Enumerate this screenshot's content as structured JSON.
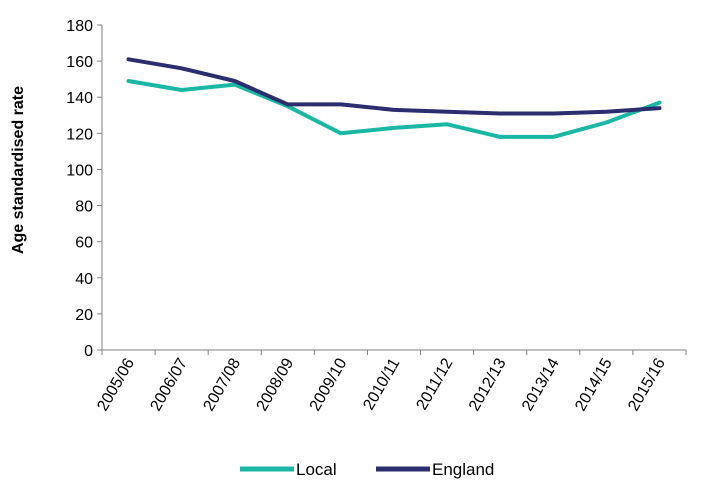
{
  "chart_data": {
    "type": "line",
    "title": "",
    "xlabel": "",
    "ylabel": "Age standardised rate",
    "ylim": [
      0,
      180
    ],
    "yticks": [
      0,
      20,
      40,
      60,
      80,
      100,
      120,
      140,
      160,
      180
    ],
    "grid": false,
    "legend_position": "bottom",
    "categories": [
      "2005/06",
      "2006/07",
      "2007/08",
      "2008/09",
      "2009/10",
      "2010/11",
      "2011/12",
      "2012/13",
      "2013/14",
      "2014/15",
      "2015/16"
    ],
    "series": [
      {
        "name": "Local",
        "color": "#1ab8a4",
        "values": [
          149,
          144,
          147,
          135,
          120,
          123,
          125,
          118,
          118,
          126,
          137
        ]
      },
      {
        "name": "England",
        "color": "#2b2d6e",
        "values": [
          161,
          156,
          149,
          136,
          136,
          133,
          132,
          131,
          131,
          132,
          134
        ]
      }
    ]
  }
}
